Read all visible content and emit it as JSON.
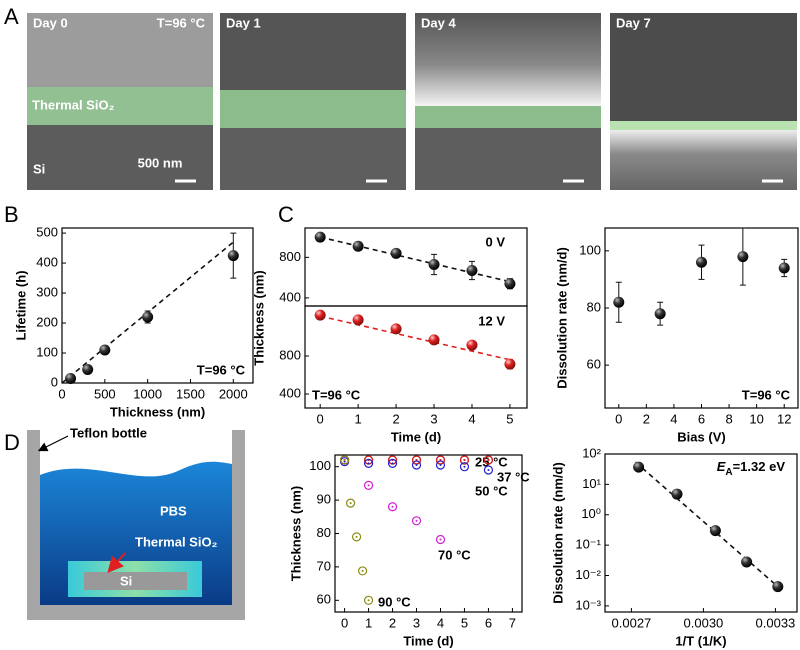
{
  "panel_labels": [
    "A",
    "B",
    "C",
    "D"
  ],
  "sem_images": [
    {
      "label": "Day 0",
      "condition": "T=96 °C",
      "layer": "Thermal SiO₂",
      "substrate": "Si",
      "scale_bar": "500 nm"
    },
    {
      "label": "Day 1"
    },
    {
      "label": "Day 4"
    },
    {
      "label": "Day 7"
    }
  ],
  "diagram": {
    "container": "Teflon bottle",
    "solution": "PBS",
    "layer": "Thermal SiO₂",
    "substrate": "Si"
  },
  "chart_data": [
    {
      "type": "scatter",
      "x_label": "Thickness (nm)",
      "y_label": "Lifetime (h)",
      "xlim": [
        0,
        2230
      ],
      "ylim": [
        0,
        517
      ],
      "xticks": [
        0,
        500,
        1000,
        1500,
        2000
      ],
      "yticks": [
        0,
        100,
        200,
        300,
        400,
        500
      ],
      "series": [
        {
          "color": "#111111",
          "x": [
            100,
            300,
            500,
            1000,
            2000
          ],
          "values": [
            15,
            45,
            110,
            220,
            425
          ],
          "errors": [
            5,
            8,
            8,
            20,
            75
          ]
        }
      ],
      "fit": {
        "x": [
          0,
          2000
        ],
        "y": [
          0,
          470
        ],
        "color": "#111111"
      },
      "annotations": [
        {
          "text": "T=96 °C"
        }
      ]
    },
    {
      "type": "scatter",
      "xlim": [
        -0.4,
        5.45
      ],
      "ylim": [
        320,
        1090
      ],
      "yticks": [
        400,
        800
      ],
      "series": [
        {
          "color": "#111111",
          "x": [
            0,
            1,
            2,
            3,
            4,
            5
          ],
          "values": [
            1000,
            910,
            840,
            730,
            670,
            540
          ],
          "errors": [
            0,
            20,
            20,
            100,
            90,
            50
          ]
        }
      ],
      "fit": {
        "x": [
          0,
          5
        ],
        "y": [
          1000,
          560
        ],
        "color": "#111111"
      },
      "annotations": [
        {
          "text": "0 V"
        }
      ]
    },
    {
      "type": "scatter",
      "x_label": "Time (d)",
      "y_label": "Thickness (nm)",
      "xlim": [
        -0.4,
        5.45
      ],
      "ylim": [
        253,
        1326
      ],
      "xticks": [
        0,
        1,
        2,
        3,
        4,
        5
      ],
      "yticks": [
        400,
        800
      ],
      "series": [
        {
          "color": "#e02020",
          "x": [
            0,
            1,
            2,
            3,
            4,
            5
          ],
          "values": [
            1230,
            1180,
            1085,
            970,
            915,
            715
          ],
          "errors": [
            20,
            20,
            20,
            40,
            30,
            50
          ]
        }
      ],
      "fit": {
        "x": [
          0,
          5
        ],
        "y": [
          1220,
          760
        ],
        "color": "#e02020"
      },
      "annotations": [
        {
          "text": "12 V",
          "color": "#e02020"
        },
        {
          "text": "T=96 °C"
        }
      ]
    },
    {
      "type": "scatter",
      "x_label": "Bias (V)",
      "y_label": "Dissolution rate (nm/d)",
      "xlim": [
        -1,
        13
      ],
      "ylim": [
        45,
        108
      ],
      "xticks": [
        0,
        2,
        4,
        6,
        8,
        10,
        12
      ],
      "yticks": [
        60,
        80,
        100
      ],
      "series": [
        {
          "color": "#111111",
          "x": [
            0,
            3,
            6,
            9,
            12
          ],
          "values": [
            82,
            78,
            96,
            98,
            94
          ],
          "errors": [
            7,
            4,
            6,
            10,
            3
          ]
        }
      ],
      "annotations": [
        {
          "text": "T=96 °C"
        }
      ]
    },
    {
      "type": "scatter",
      "x_label": "Time (d)",
      "y_label": "Thickness (nm)",
      "xlim": [
        -0.4,
        7.4
      ],
      "ylim": [
        56.5,
        103.5
      ],
      "xticks": [
        0,
        1,
        2,
        3,
        4,
        5,
        6,
        7
      ],
      "yticks": [
        60,
        70,
        80,
        90,
        100
      ],
      "marker": "ring",
      "series": [
        {
          "name": "25 °C",
          "color": "#111111",
          "x": [
            0,
            1,
            2,
            3,
            4,
            5,
            6
          ],
          "values": [
            102,
            102,
            102,
            102,
            102,
            102,
            102
          ]
        },
        {
          "name": "37 °C",
          "color": "#e02020",
          "x": [
            0,
            1,
            2,
            3,
            4,
            5,
            6
          ],
          "values": [
            102,
            102,
            102,
            102,
            102,
            102,
            102
          ]
        },
        {
          "name": "50 °C",
          "color": "#2020d0",
          "x": [
            0,
            1,
            2,
            3,
            4,
            5,
            6
          ],
          "values": [
            101.5,
            101,
            101,
            100.5,
            100.5,
            100,
            99
          ]
        },
        {
          "name": "70 °C",
          "color": "#d020d0",
          "x": [
            0,
            1,
            2,
            3,
            4
          ],
          "values": [
            102,
            94.4,
            88,
            83.8,
            78.2
          ]
        },
        {
          "name": "90 °C",
          "color": "#8a8a10",
          "x": [
            0,
            0.25,
            0.5,
            0.75,
            1
          ],
          "values": [
            102,
            89.1,
            79,
            68.8,
            60
          ]
        }
      ]
    },
    {
      "type": "scatter",
      "x_label": "1/T (1/K)",
      "y_label": "Dissolution rate (nm/d)",
      "ylog": true,
      "xlim": [
        0.00259,
        0.00339
      ],
      "ylim": [
        0.00063,
        100
      ],
      "xticks": [
        0.0027,
        {
          "value": 0.003,
          "label": "0.0030"
        },
        0.0033
      ],
      "yticks": [
        {
          "value": 100,
          "label": "10²"
        },
        {
          "value": 10,
          "label": "10¹"
        },
        {
          "value": 1,
          "label": "10⁰"
        },
        {
          "value": 0.1,
          "label": "10⁻¹"
        },
        {
          "value": 0.01,
          "label": "10⁻²"
        },
        {
          "value": 0.001,
          "label": "10⁻³"
        }
      ],
      "series": [
        {
          "color": "#111111",
          "x": [
            0.00273,
            0.00289,
            0.00305,
            0.00318,
            0.00331
          ],
          "values": [
            37,
            4.8,
            0.3,
            0.028,
            0.0043
          ]
        }
      ],
      "fit": {
        "x": [
          0.002717,
          0.003325
        ],
        "y": [
          54,
          0.0034
        ],
        "color": "#111111"
      },
      "annotations": [
        {
          "parts": [
            "E",
            "A",
            "=1.32 eV"
          ]
        }
      ]
    }
  ]
}
